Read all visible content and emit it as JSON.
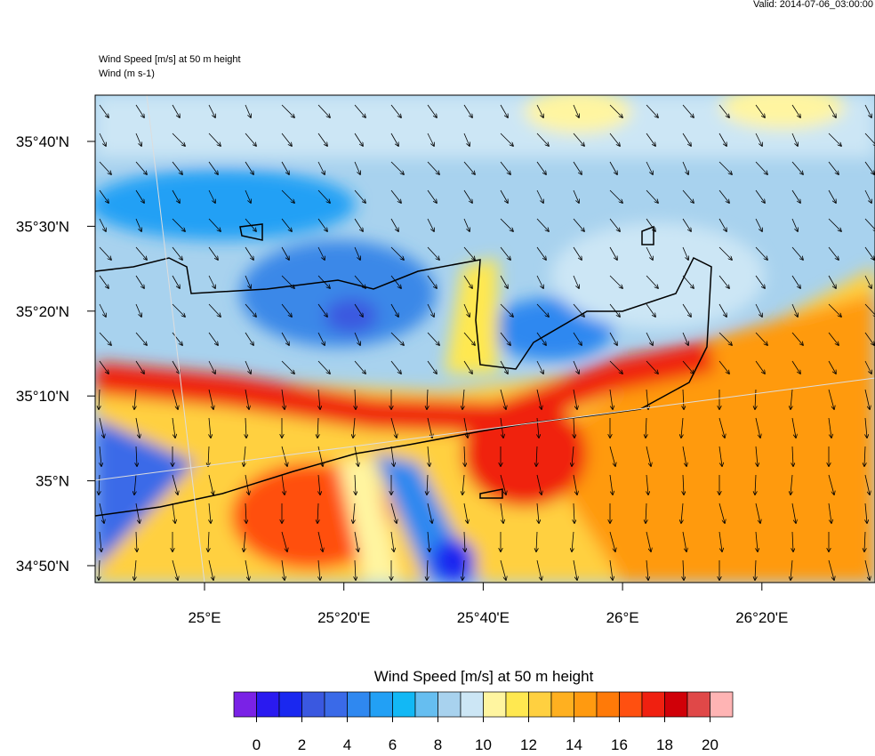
{
  "header": {
    "valid": "Valid: 2014-07-06_03:00:00",
    "title": "Wind Speed [m/s] at 50 m height",
    "subtitle": "Wind   (m s-1)"
  },
  "map": {
    "lat_labels": [
      "35°40'N",
      "35°30'N",
      "35°20'N",
      "35°10'N",
      "35°N",
      "34°50'N"
    ],
    "lon_labels": [
      "25°E",
      "25°20'E",
      "25°40'E",
      "26°E",
      "26°20'E"
    ]
  },
  "colorbar": {
    "title": "Wind Speed [m/s] at 50 m height",
    "lim": [
      -1,
      21
    ],
    "ticks": [
      0,
      2,
      4,
      6,
      8,
      10,
      12,
      14,
      16,
      18,
      20
    ],
    "colors": [
      "#7a22e6",
      "#2a1af0",
      "#1a28f0",
      "#3a58e0",
      "#3a6ae8",
      "#2f88f0",
      "#22a0f5",
      "#12b8f5",
      "#66bef0",
      "#a8d2ee",
      "#cce6f5",
      "#fff5a0",
      "#ffe850",
      "#ffd040",
      "#ffb020",
      "#ff9a10",
      "#ff7a08",
      "#ff5010",
      "#f02010",
      "#d00008",
      "#e04848",
      "#ffb4b4"
    ]
  }
}
